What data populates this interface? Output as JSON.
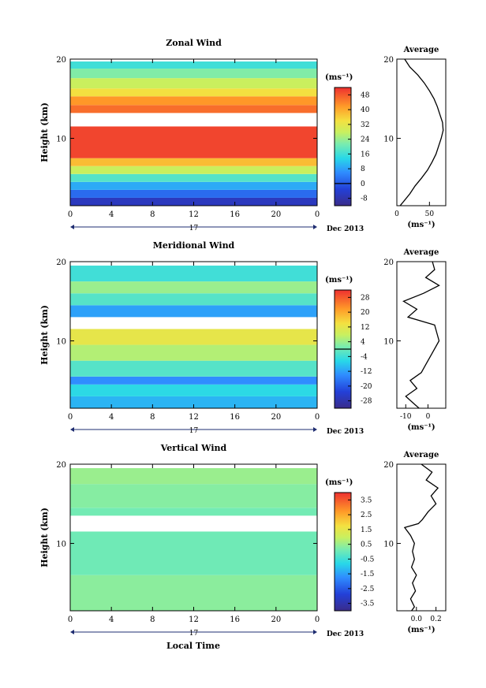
{
  "figure": {
    "xlabel_bottom": "Local Time",
    "date_label": "Dec 2013",
    "day_label": "17"
  },
  "chart_data": [
    {
      "type": "heatmap",
      "title": "Zonal Wind",
      "ylabel": "Height (km)",
      "xlim": [
        0,
        24
      ],
      "ylim": [
        1.5,
        20
      ],
      "xticks": [
        "0",
        "4",
        "8",
        "12",
        "16",
        "20",
        "0"
      ],
      "yticks": [
        "10",
        "20"
      ],
      "colorbar": {
        "unit": "(ms⁻¹)",
        "range": [
          -12,
          52
        ],
        "ticks": [
          "-8",
          "0",
          "8",
          "16",
          "24",
          "32",
          "40",
          "48"
        ],
        "zero_line": 0
      },
      "bands": [
        {
          "bottom": 1.5,
          "top": 2.5,
          "value": -6
        },
        {
          "bottom": 2.5,
          "top": 3.5,
          "value": 2
        },
        {
          "bottom": 3.5,
          "top": 4.5,
          "value": 9
        },
        {
          "bottom": 4.5,
          "top": 5.5,
          "value": 18
        },
        {
          "bottom": 5.5,
          "top": 6.5,
          "value": 28
        },
        {
          "bottom": 6.5,
          "top": 7.5,
          "value": 38
        },
        {
          "bottom": 7.5,
          "top": 11.5,
          "value": 50
        },
        {
          "bottom": 13.2,
          "top": 14.2,
          "value": 46
        },
        {
          "bottom": 14.2,
          "top": 15.3,
          "value": 42
        },
        {
          "bottom": 15.3,
          "top": 16.3,
          "value": 34
        },
        {
          "bottom": 16.3,
          "top": 17.6,
          "value": 28
        },
        {
          "bottom": 17.6,
          "top": 18.8,
          "value": 22
        },
        {
          "bottom": 18.8,
          "top": 19.7,
          "value": 16
        }
      ],
      "average": {
        "title": "Average",
        "xlim": [
          0,
          75
        ],
        "xticks": [
          {
            "v": 0,
            "t": "0"
          },
          {
            "v": 50,
            "t": "50"
          }
        ],
        "xlabel": "(ms⁻¹)",
        "heights": [
          1.5,
          2,
          3,
          4,
          5,
          6,
          7,
          8,
          9,
          10,
          11,
          12,
          13,
          14,
          15,
          16,
          17,
          18,
          19,
          20
        ],
        "values": [
          5,
          10,
          20,
          28,
          38,
          47,
          54,
          60,
          64,
          68,
          71,
          70,
          66,
          62,
          57,
          50,
          42,
          32,
          20,
          12
        ]
      }
    },
    {
      "type": "heatmap",
      "title": "Meridional Wind",
      "ylabel": "Height (km)",
      "xlim": [
        0,
        24
      ],
      "ylim": [
        1.5,
        20
      ],
      "xticks": [
        "0",
        "4",
        "8",
        "12",
        "16",
        "20",
        "0"
      ],
      "yticks": [
        "10",
        "20"
      ],
      "colorbar": {
        "unit": "(ms⁻¹)",
        "range": [
          -32,
          32
        ],
        "ticks": [
          "-28",
          "-20",
          "-12",
          "-4",
          "4",
          "12",
          "20",
          "28"
        ],
        "zero_line": 0
      },
      "bands": [
        {
          "bottom": 1.5,
          "top": 3.0,
          "value": -10
        },
        {
          "bottom": 3.0,
          "top": 4.5,
          "value": -6
        },
        {
          "bottom": 4.5,
          "top": 5.5,
          "value": -14
        },
        {
          "bottom": 5.5,
          "top": 7.5,
          "value": -2
        },
        {
          "bottom": 7.5,
          "top": 9.5,
          "value": 6
        },
        {
          "bottom": 9.5,
          "top": 11.5,
          "value": 12
        },
        {
          "bottom": 13.0,
          "top": 14.5,
          "value": -12
        },
        {
          "bottom": 14.5,
          "top": 16.0,
          "value": -2
        },
        {
          "bottom": 16.0,
          "top": 17.5,
          "value": 4
        },
        {
          "bottom": 17.5,
          "top": 19.5,
          "value": -4
        }
      ],
      "average": {
        "title": "Average",
        "xlim": [
          -14,
          8
        ],
        "xticks": [
          {
            "v": -10,
            "t": "-10"
          },
          {
            "v": 0,
            "t": "0"
          }
        ],
        "xlabel": "(ms⁻¹)",
        "heights": [
          1.5,
          2,
          3,
          4,
          5,
          6,
          7,
          8,
          9,
          10,
          11,
          12,
          13,
          14,
          15,
          16,
          17,
          18,
          19,
          20
        ],
        "values": [
          -4,
          -6,
          -10,
          -5,
          -8,
          -3,
          -1,
          1,
          3,
          5,
          4,
          3,
          -9,
          -5,
          -11,
          -2,
          5,
          -1,
          3,
          2
        ]
      }
    },
    {
      "type": "heatmap",
      "title": "Vertical Wind",
      "ylabel": "Height (km)",
      "xlabel": "Local Time",
      "xlim": [
        0,
        24
      ],
      "ylim": [
        1.5,
        20
      ],
      "xticks": [
        "0",
        "4",
        "8",
        "12",
        "16",
        "20",
        "0"
      ],
      "yticks": [
        "10",
        "20"
      ],
      "colorbar": {
        "unit": "(ms⁻¹)",
        "range": [
          -4,
          4
        ],
        "ticks": [
          "-3.5",
          "-2.5",
          "-1.5",
          "-0.5",
          "0.5",
          "1.5",
          "2.5",
          "3.5"
        ],
        "zero_line": null
      },
      "bands": [
        {
          "bottom": 1.5,
          "top": 6.0,
          "value": 0.35
        },
        {
          "bottom": 6.0,
          "top": 11.5,
          "value": 0.05
        },
        {
          "bottom": 13.5,
          "top": 14.5,
          "value": 0.1
        },
        {
          "bottom": 14.5,
          "top": 17.5,
          "value": 0.3
        },
        {
          "bottom": 17.5,
          "top": 19.5,
          "value": 0.5
        }
      ],
      "average": {
        "title": "Average",
        "xlim": [
          -0.2,
          0.3
        ],
        "xticks": [
          {
            "v": 0.0,
            "t": "0.0"
          },
          {
            "v": 0.2,
            "t": "0.2"
          }
        ],
        "xlabel": "(ms⁻¹)",
        "heights": [
          1.5,
          2,
          3,
          4,
          5,
          6,
          7,
          8,
          9,
          10,
          11,
          12,
          12.5,
          13,
          14,
          15,
          16,
          17,
          18,
          19,
          20
        ],
        "values": [
          -0.05,
          -0.02,
          -0.06,
          -0.01,
          -0.04,
          0.0,
          -0.05,
          -0.02,
          -0.04,
          -0.02,
          -0.06,
          -0.12,
          0.02,
          0.06,
          0.12,
          0.2,
          0.15,
          0.22,
          0.1,
          0.16,
          0.05
        ]
      }
    }
  ]
}
